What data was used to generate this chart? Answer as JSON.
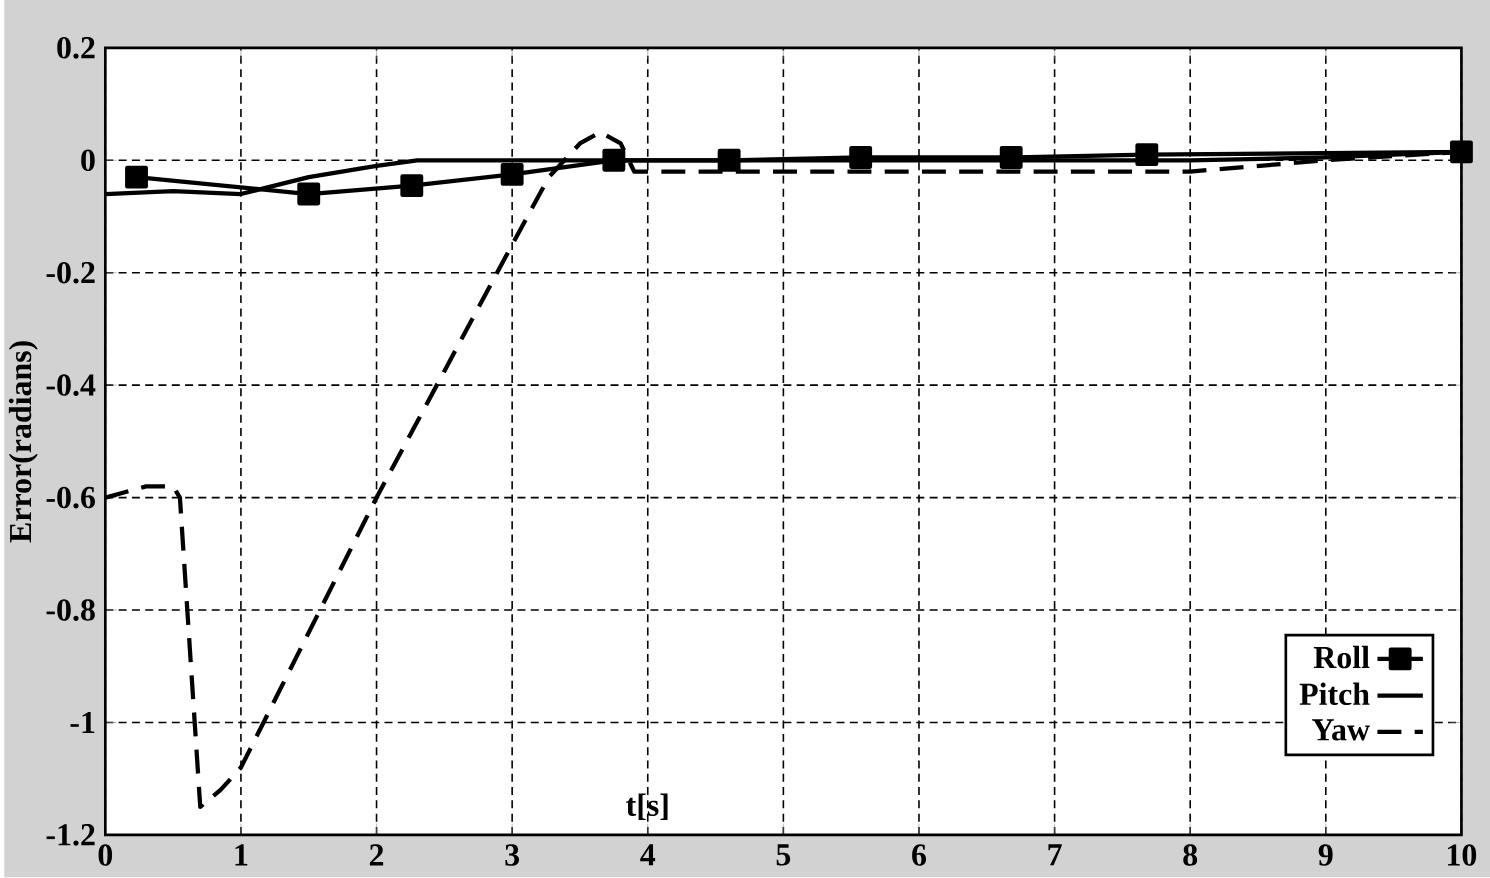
{
  "chart_data": {
    "type": "line",
    "xlabel": "t[s]",
    "ylabel": "Error(radians)",
    "xlim": [
      0,
      10
    ],
    "ylim": [
      -1.2,
      0.2
    ],
    "xticks": [
      0,
      1,
      2,
      3,
      4,
      5,
      6,
      7,
      8,
      9,
      10
    ],
    "yticks": [
      -1.2,
      -1,
      -0.8,
      -0.6,
      -0.4,
      -0.2,
      0,
      0.2
    ],
    "grid": true,
    "legend": "bottom right",
    "series": [
      {
        "name": "Roll",
        "color": "#000000",
        "marker": "square",
        "line_style": "solid",
        "x": [
          0.23,
          1.5,
          2.26,
          3.0,
          3.75,
          4.6,
          5.57,
          6.68,
          7.68,
          10
        ],
        "values": [
          -0.03,
          -0.06,
          -0.045,
          -0.025,
          0.0,
          0.0,
          0.005,
          0.005,
          0.01,
          0.015
        ]
      },
      {
        "name": "Pitch",
        "color": "#000000",
        "marker": "none",
        "line_style": "solid",
        "x": [
          0,
          0.5,
          1.0,
          1.5,
          2.0,
          2.3,
          3.0,
          4.0,
          6.0,
          8.0,
          9.0,
          10
        ],
        "values": [
          -0.06,
          -0.055,
          -0.06,
          -0.03,
          -0.01,
          0.0,
          0.0,
          0.0,
          0.0,
          0.0,
          0.005,
          0.015
        ]
      },
      {
        "name": "Yaw",
        "color": "#000000",
        "marker": "none",
        "line_style": "dashed",
        "x": [
          0,
          0.3,
          0.5,
          0.55,
          0.7,
          0.85,
          1.0,
          2.0,
          3.0,
          3.27,
          3.5,
          3.65,
          3.8,
          3.9,
          5,
          6,
          7,
          8,
          9,
          10
        ],
        "values": [
          -0.6,
          -0.58,
          -0.58,
          -0.6,
          -1.15,
          -1.12,
          -1.08,
          -0.6,
          -0.15,
          -0.03,
          0.03,
          0.05,
          0.03,
          -0.02,
          -0.02,
          -0.02,
          -0.02,
          -0.02,
          0.0,
          0.015
        ]
      }
    ]
  }
}
